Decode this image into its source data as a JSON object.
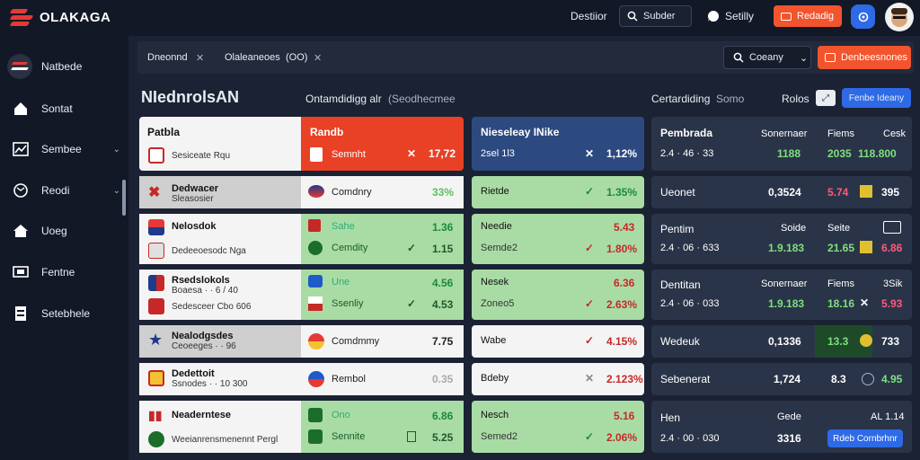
{
  "topbar": {
    "brand": "OLAKAGA",
    "link1": "Destiior",
    "search": "Subder",
    "link2": "Setilly",
    "orange": "Redadig"
  },
  "sidebar": {
    "brand": "Natbede",
    "items": [
      "Sontat",
      "Sembee",
      "Reodi",
      "Uoeg",
      "Fentne",
      "Setebhele"
    ]
  },
  "crumbs": {
    "c1": "Dneonnd",
    "c2": "Olaleaneoes",
    "c3": "(OO)",
    "category": "Coeany",
    "cta": "Denbeesnones"
  },
  "heading": {
    "title": "NIednrolsAN",
    "sub1": "Ontamdidigg alr",
    "sub2": "(Seodhecmee",
    "sub3": "Certardiding",
    "sub4": "Somo",
    "sub5": "Rolos",
    "btn": "Fenbe Ideany"
  },
  "rows": [
    {
      "name": "Patbla",
      "sub": "Sesiceate Rqu",
      "odd1": "Randb",
      "odd1sub": "Semnht",
      "v1": "17,72",
      "m1": "Nieseleay INike",
      "m1sub": "2sel 1l3",
      "mv": "1,12%",
      "r1": "Pembrada",
      "r1a": "Sonernaer",
      "r1b": "Fiems",
      "r1c": "Cesk",
      "r1v1": "2.4 · 46 · 33",
      "r1v2": "1188",
      "r1v3": "2035",
      "r1v4": "118.800"
    },
    {
      "name": "Dedwacer",
      "sub": "Sleasosier",
      "odd1": "Comdnry",
      "v1": "33%",
      "m1": "Rietde",
      "mv": "1.35%",
      "r1": "Ueonet",
      "r1v2": "0,3524",
      "r1v3": "5.74",
      "r1v4": "395"
    },
    {
      "name": "Nelosdok",
      "sub": "Dedeeoesodc Nga",
      "odd1": "Sahe",
      "odd1sub": "Cemdity",
      "v1": "1.36",
      "v2": "1.15",
      "m1": "Needie",
      "m1sub": "Semde2",
      "mv": "5.43",
      "mv2": "1.80%",
      "r1": "Pentim",
      "r1a": "Soide",
      "r1b": "Seite",
      "r1v1": "2.4 · 06 · 633",
      "r1v2": "1.9.183",
      "r1v3": "21.65",
      "r1v4": "6.86"
    },
    {
      "name": "Rsedslokols",
      "sub": "Boaesa · · 6 / 40",
      "sub2": "Sedesceer Cbo 606",
      "odd1": "Une",
      "odd1sub": "Ssenliy",
      "v1": "4.56",
      "v2": "4.53",
      "m1": "Nesek",
      "m1sub": "Zoneo5",
      "mv": "6.36",
      "mv2": "2.63%",
      "r1": "Dentitan",
      "r1a": "Sonernaer",
      "r1b": "Fiems",
      "r1c": "3Sik",
      "r1v1": "2.4 · 06 · 033",
      "r1v2": "1.9.183",
      "r1v3": "18.16",
      "r1v4": "5.93"
    },
    {
      "name": "Nealodgsdes",
      "sub": "Ceoeeges · · 96",
      "odd1": "Comdmmy",
      "v1": "7.75",
      "m1": "Wabe",
      "mv": "4.15%",
      "r1": "Wedeuk",
      "r1v2": "0,1336",
      "r1v3": "13.3",
      "r1v4": "733"
    },
    {
      "name": "Dedettoit",
      "sub": "Ssnodes · · 10 300",
      "odd1": "Rembol",
      "v1": "0.35",
      "m1": "Bdeby",
      "mv": "2.123%",
      "r1": "Sebenerat",
      "r1v2": "1,724",
      "r1v3": "8.3",
      "r1v4": "4.95"
    },
    {
      "name": "Neaderntese",
      "sub": "Weeianrensmenennt Pergl",
      "odd1": "Ono",
      "odd1sub": "Sennite",
      "v1": "6.86",
      "v2": "5.25",
      "m1": "Nesch",
      "m1sub": "Semed2",
      "mv": "5.16",
      "mv2": "2.06%",
      "r1": "Hen",
      "r1a": "Gede",
      "r1b": "AL 1.14",
      "r1v1": "2.4 · 00 · 030",
      "r1v2": "3316",
      "btn": "Rdeb Cornbrhnr"
    }
  ]
}
